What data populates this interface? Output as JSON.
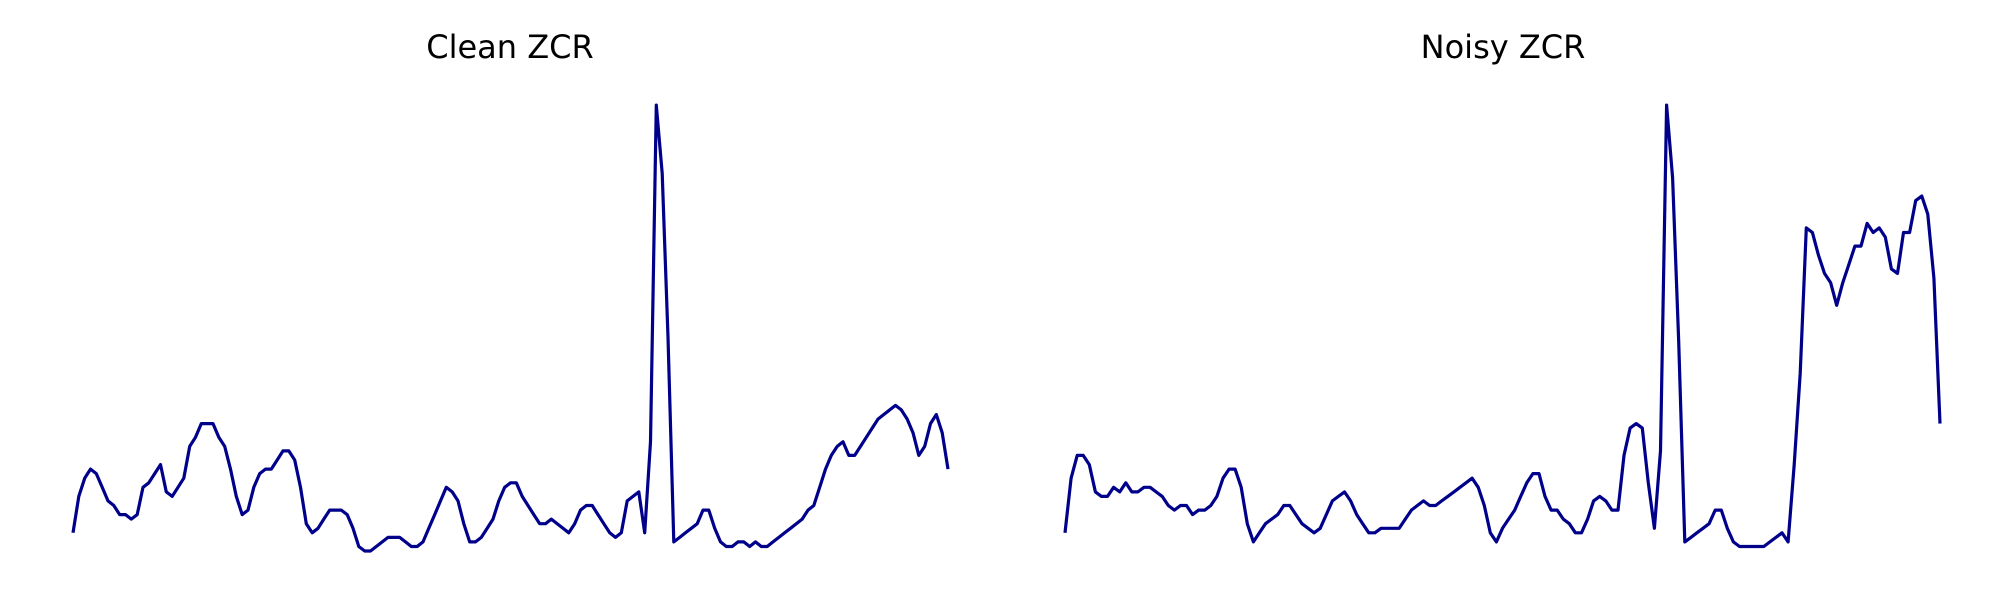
{
  "colors": {
    "line": "#00008b",
    "background": "#ffffff"
  },
  "chart_data": [
    {
      "type": "line",
      "title": "Clean ZCR",
      "axes_visible": false,
      "grid": false,
      "legend": "none",
      "ylim": [
        0,
        1
      ],
      "series": [
        {
          "values": [
            0.04,
            0.12,
            0.16,
            0.18,
            0.17,
            0.14,
            0.11,
            0.1,
            0.08,
            0.08,
            0.07,
            0.08,
            0.14,
            0.15,
            0.17,
            0.19,
            0.13,
            0.12,
            0.14,
            0.16,
            0.23,
            0.25,
            0.28,
            0.28,
            0.28,
            0.25,
            0.23,
            0.18,
            0.12,
            0.08,
            0.09,
            0.14,
            0.17,
            0.18,
            0.18,
            0.2,
            0.22,
            0.22,
            0.2,
            0.14,
            0.06,
            0.04,
            0.05,
            0.07,
            0.09,
            0.09,
            0.09,
            0.08,
            0.05,
            0.01,
            0.0,
            0.0,
            0.01,
            0.02,
            0.03,
            0.03,
            0.03,
            0.02,
            0.01,
            0.01,
            0.02,
            0.05,
            0.08,
            0.11,
            0.14,
            0.13,
            0.11,
            0.06,
            0.02,
            0.02,
            0.03,
            0.05,
            0.07,
            0.11,
            0.14,
            0.15,
            0.15,
            0.12,
            0.1,
            0.08,
            0.06,
            0.06,
            0.07,
            0.06,
            0.05,
            0.04,
            0.06,
            0.09,
            0.1,
            0.1,
            0.08,
            0.06,
            0.04,
            0.03,
            0.04,
            0.11,
            0.12,
            0.13,
            0.04,
            0.24,
            0.98,
            0.83,
            0.47,
            0.02,
            0.03,
            0.04,
            0.05,
            0.06,
            0.09,
            0.09,
            0.05,
            0.02,
            0.01,
            0.01,
            0.02,
            0.02,
            0.01,
            0.02,
            0.01,
            0.01,
            0.02,
            0.03,
            0.04,
            0.05,
            0.06,
            0.07,
            0.09,
            0.1,
            0.14,
            0.18,
            0.21,
            0.23,
            0.24,
            0.21,
            0.21,
            0.23,
            0.25,
            0.27,
            0.29,
            0.3,
            0.31,
            0.32,
            0.31,
            0.29,
            0.26,
            0.21,
            0.23,
            0.28,
            0.3,
            0.26,
            0.18
          ]
        }
      ]
    },
    {
      "type": "line",
      "title": "Noisy ZCR",
      "axes_visible": false,
      "grid": false,
      "legend": "none",
      "ylim": [
        0,
        1
      ],
      "series": [
        {
          "values": [
            0.04,
            0.16,
            0.21,
            0.21,
            0.19,
            0.13,
            0.12,
            0.12,
            0.14,
            0.13,
            0.15,
            0.13,
            0.13,
            0.14,
            0.14,
            0.13,
            0.12,
            0.1,
            0.09,
            0.1,
            0.1,
            0.08,
            0.09,
            0.09,
            0.1,
            0.12,
            0.16,
            0.18,
            0.18,
            0.14,
            0.06,
            0.02,
            0.04,
            0.06,
            0.07,
            0.08,
            0.1,
            0.1,
            0.08,
            0.06,
            0.05,
            0.04,
            0.05,
            0.08,
            0.11,
            0.12,
            0.13,
            0.11,
            0.08,
            0.06,
            0.04,
            0.04,
            0.05,
            0.05,
            0.05,
            0.05,
            0.07,
            0.09,
            0.1,
            0.11,
            0.1,
            0.1,
            0.11,
            0.12,
            0.13,
            0.14,
            0.15,
            0.16,
            0.14,
            0.1,
            0.04,
            0.02,
            0.05,
            0.07,
            0.09,
            0.12,
            0.15,
            0.17,
            0.17,
            0.12,
            0.09,
            0.09,
            0.07,
            0.06,
            0.04,
            0.04,
            0.07,
            0.11,
            0.12,
            0.11,
            0.09,
            0.09,
            0.21,
            0.27,
            0.28,
            0.27,
            0.15,
            0.05,
            0.22,
            0.98,
            0.82,
            0.46,
            0.02,
            0.03,
            0.04,
            0.05,
            0.06,
            0.09,
            0.09,
            0.05,
            0.02,
            0.01,
            0.01,
            0.01,
            0.01,
            0.01,
            0.02,
            0.03,
            0.04,
            0.02,
            0.19,
            0.39,
            0.71,
            0.7,
            0.65,
            0.61,
            0.59,
            0.54,
            0.59,
            0.63,
            0.67,
            0.67,
            0.72,
            0.7,
            0.71,
            0.69,
            0.62,
            0.61,
            0.7,
            0.7,
            0.77,
            0.78,
            0.74,
            0.6,
            0.28
          ]
        }
      ]
    }
  ]
}
